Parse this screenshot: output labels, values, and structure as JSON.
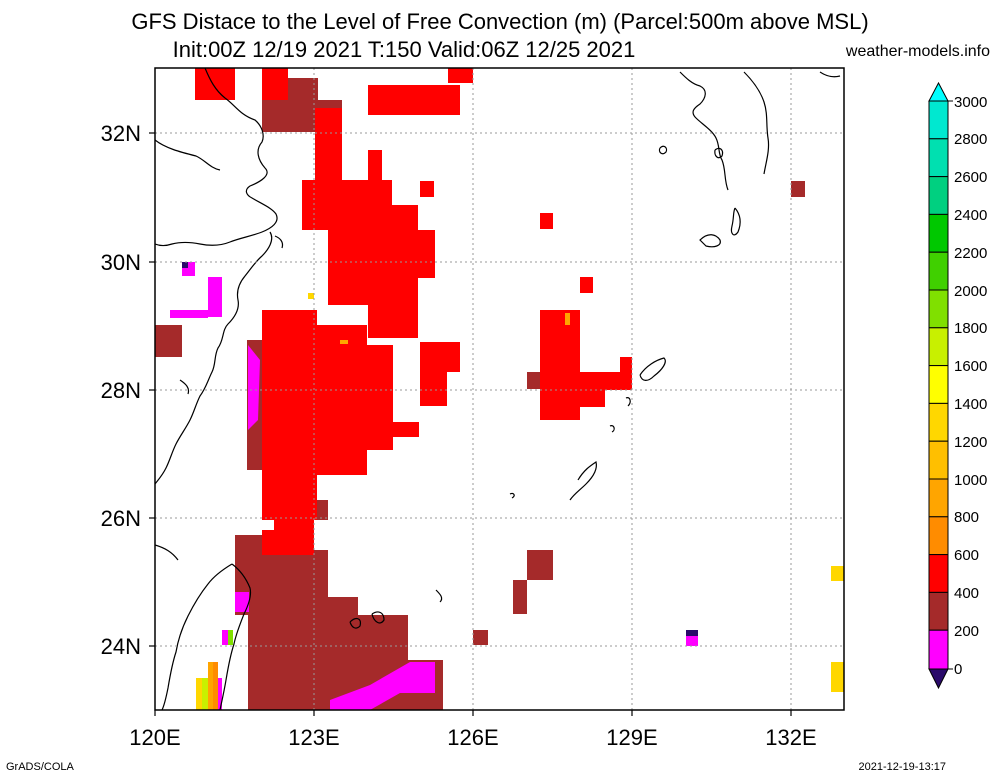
{
  "title_line1": "GFS Distace to the Level of Free Convection (m) (Parcel:500m above MSL)",
  "title_line2": "Init:00Z 12/19 2021 T:150 Valid:06Z 12/25 2021",
  "site": "weather-models.info",
  "footer_left": "GrADS/COLA",
  "footer_right": "2021-12-19-13:17",
  "map": {
    "lon_labels": [
      "120E",
      "123E",
      "126E",
      "129E",
      "132E"
    ],
    "lat_labels": [
      "24N",
      "26N",
      "28N",
      "30N",
      "32N"
    ],
    "lon_range": [
      120,
      133
    ],
    "lat_range": [
      23,
      33
    ]
  },
  "colorbar": {
    "labels": [
      "0",
      "200",
      "400",
      "600",
      "800",
      "1000",
      "1200",
      "1400",
      "1600",
      "1800",
      "2000",
      "2200",
      "2400",
      "2600",
      "2800",
      "3000"
    ],
    "colors": {
      "lt0": "#2a0a6a",
      "c0_200": "#ff00ff",
      "c200_400": "#a52a2a",
      "c400_600": "#ff0000",
      "c600_800": "#ff8c00",
      "c800_1000": "#ffa500",
      "c1000_1200": "#ffbf00",
      "c1200_1400": "#ffd700",
      "c1400_1600": "#ffff00",
      "c1600_1800": "#c8f000",
      "c1800_2000": "#80e000",
      "c2000_2200": "#40d000",
      "c2200_2400": "#00c800",
      "c2400_2600": "#00d080",
      "c2600_2800": "#00e0b0",
      "c2800_3000": "#00e8d0",
      "gt3000": "#00ffff"
    }
  }
}
